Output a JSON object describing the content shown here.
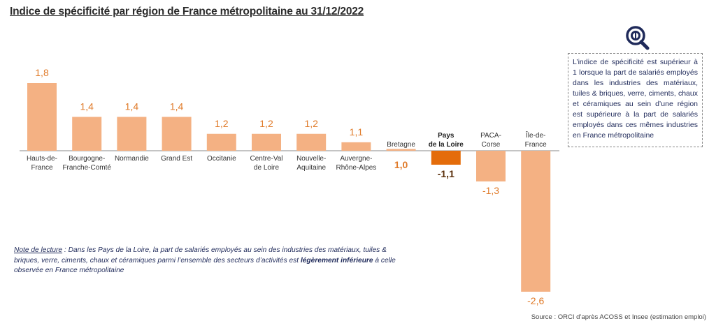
{
  "title": "Indice de spécificité par région de France métropolitaine au 31/12/2022",
  "info_box": "L’indice de spécificité est supérieur à 1 lorsque la part de salariés employés dans les industries des matériaux, tuiles & briques, verre, ciments, chaux et céramiques au sein d’une région est supérieure à la part de salariés employés dans ces mêmes industries en France métropolitaine",
  "note": {
    "label": "Note de lecture",
    "text_before": " : Dans les Pays de la Loire, la part de salariés employés au sein des industries des matériaux, tuiles & briques, verre, ciments, chaux et céramiques parmi l’ensemble des secteurs d’activités est ",
    "emphasis": "légèrement inférieure",
    "text_after": " à celle observée en France métropolitaine"
  },
  "source": "Source : ORCI d’après ACOSS et Insee (estimation emploi)",
  "colors": {
    "bar": "#f4b183",
    "highlight": "#e46c0a",
    "value_label": "#e07b2a",
    "axis": "#8a8a8a",
    "logo": "#1f2a5a"
  },
  "icons": {
    "logo": "magnifier-logo-icon"
  },
  "chart_data": {
    "type": "bar",
    "baseline": 1,
    "highlight_category": "Pays de la Loire",
    "categories": [
      "Hauts-de-France",
      "Bourgogne-Franche-Comté",
      "Normandie",
      "Grand Est",
      "Occitanie",
      "Centre-Val de Loire",
      "Nouvelle-Aquitaine",
      "Auvergne-Rhône-Alpes",
      "Bretagne",
      "Pays de la Loire",
      "PACA-Corse",
      "Île-de-France"
    ],
    "category_labels": [
      [
        "Hauts-de-",
        "France"
      ],
      [
        "Bourgogne-",
        "Franche-Comté"
      ],
      [
        "Normandie"
      ],
      [
        "Grand Est"
      ],
      [
        "Occitanie"
      ],
      [
        "Centre-Val",
        "de Loire"
      ],
      [
        "Nouvelle-",
        "Aquitaine"
      ],
      [
        "Auvergne-",
        "Rhône-Alpes"
      ],
      [
        "Bretagne"
      ],
      [
        "Pays",
        "de la Loire"
      ],
      [
        "PACA-",
        "Corse"
      ],
      [
        "Île-de-",
        "France"
      ]
    ],
    "values": [
      1.8,
      1.4,
      1.4,
      1.4,
      1.2,
      1.2,
      1.2,
      1.1,
      1.0,
      -1.1,
      -1.3,
      -2.6
    ],
    "value_labels": [
      "1,8",
      "1,4",
      "1,4",
      "1,4",
      "1,2",
      "1,2",
      "1,2",
      "1,1",
      "1,0",
      "-1,1",
      "-1,3",
      "-2,6"
    ],
    "xlabel": "",
    "ylabel": "",
    "grid": false
  }
}
